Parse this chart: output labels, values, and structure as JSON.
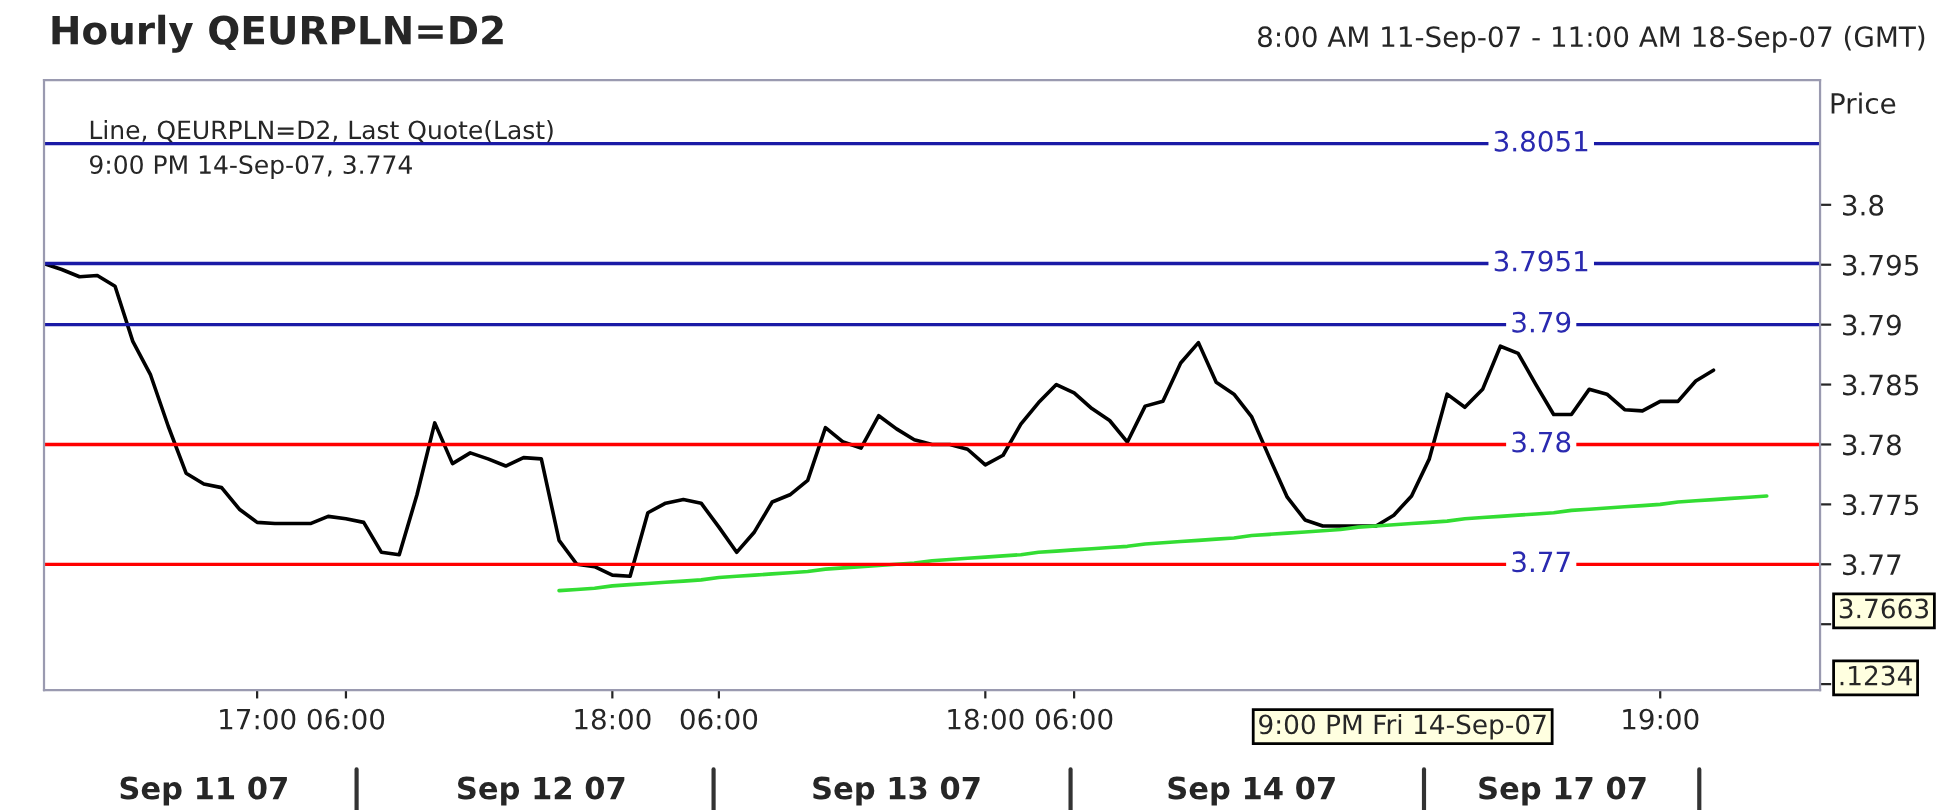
{
  "chart_data": {
    "type": "line",
    "title": "Hourly QEURPLN=D2",
    "subtitle": "8:00 AM 11-Sep-07 - 11:00 AM 18-Sep-07 (GMT)",
    "ylabel": "Price",
    "annotations": [
      "Line, QEURPLN=D2, Last Quote(Last)",
      "9:00 PM 14-Sep-07, 3.774",
      "9:00 PM Fri 14-Sep-07",
      "3.7663",
      ".1234",
      "Sep 11 07",
      "Sep 12 07",
      "Sep 13 07",
      "Sep 14 07",
      "Sep 17 07"
    ],
    "categories": [
      null,
      null,
      null,
      null,
      null,
      null,
      null,
      null,
      null,
      null,
      null,
      null,
      "17:00",
      null,
      null,
      null,
      null,
      "06:00",
      null,
      null,
      null,
      null,
      null,
      null,
      null,
      null,
      null,
      null,
      null,
      null,
      null,
      null,
      "18:00",
      null,
      null,
      null,
      null,
      null,
      "06:00",
      null,
      null,
      null,
      null,
      null,
      null,
      null,
      null,
      null,
      null,
      null,
      null,
      null,
      null,
      "18:00",
      null,
      null,
      null,
      null,
      "06:00",
      null,
      null,
      null,
      null,
      null,
      null,
      null,
      null,
      null,
      null,
      null,
      null,
      null,
      null,
      null,
      null,
      null,
      null,
      null,
      null,
      null,
      null,
      null,
      null,
      null,
      null,
      null,
      null,
      null,
      null,
      null,
      null,
      "19:00",
      null,
      null,
      null,
      null,
      null,
      null,
      null,
      null,
      null
    ],
    "ylim": [
      3.7595,
      3.8104
    ],
    "yticks": [
      {
        "value": 3.76,
        "label": null
      },
      {
        "value": 3.765,
        "label": null
      },
      3.77,
      3.775,
      3.78,
      3.785,
      3.79,
      3.795,
      3.8
    ],
    "grid": false,
    "legend": false,
    "marker": "none",
    "line_style": "solid",
    "ref_lines": [
      {
        "axis": "y",
        "value": 3.8051,
        "label": "3.8051",
        "color": "#1a1aa6"
      },
      {
        "axis": "y",
        "value": 3.7951,
        "label": "3.7951",
        "color": "#1a1aa6"
      },
      {
        "axis": "y",
        "value": 3.79,
        "label": "3.79",
        "color": "#1a1aa6"
      },
      {
        "axis": "y",
        "value": 3.78,
        "label": "3.78",
        "color": "#ff0000"
      },
      {
        "axis": "y",
        "value": 3.77,
        "label": "3.77",
        "color": "#ff0000"
      }
    ],
    "series": [
      {
        "color": "#000000",
        "values": [
          3.7951,
          3.7946,
          3.794,
          3.7941,
          3.7932,
          3.7886,
          3.7858,
          3.7815,
          3.7776,
          3.7767,
          3.7764,
          3.7746,
          3.7735,
          3.7734,
          3.7734,
          3.7734,
          3.774,
          3.7738,
          3.7735,
          3.771,
          3.7708,
          3.7758,
          3.7818,
          3.7784,
          3.7793,
          3.7788,
          3.7782,
          3.7789,
          3.7788,
          3.772,
          3.77,
          3.7698,
          3.7691,
          3.769,
          3.7743,
          3.7751,
          3.7754,
          3.7751,
          3.7731,
          3.771,
          3.7727,
          3.7752,
          3.7758,
          3.777,
          3.7814,
          3.7802,
          3.7797,
          3.7824,
          3.7813,
          3.7804,
          3.78,
          3.78,
          3.7796,
          3.7783,
          3.7791,
          3.7817,
          3.7835,
          3.785,
          3.7843,
          3.783,
          3.782,
          3.7802,
          3.7832,
          3.7836,
          3.7868,
          3.7885,
          3.7852,
          3.7842,
          3.7823,
          3.7789,
          3.7756,
          3.7737,
          3.7732,
          3.7732,
          3.7732,
          3.7732,
          3.7741,
          3.7757,
          3.7788,
          3.7842,
          3.7831,
          3.7846,
          3.7882,
          3.7876,
          3.785,
          3.7825,
          3.7825,
          3.7846,
          3.7842,
          3.7829,
          3.7828,
          3.7836,
          3.7836,
          3.7853,
          3.7862,
          null,
          null,
          null,
          null,
          null,
          null
        ]
      },
      {
        "type": "line",
        "color": "#33dd33",
        "values": [
          null,
          null,
          null,
          null,
          null,
          null,
          null,
          null,
          null,
          null,
          null,
          null,
          null,
          null,
          null,
          null,
          null,
          null,
          null,
          null,
          null,
          null,
          null,
          null,
          null,
          null,
          null,
          null,
          null,
          3.7678,
          3.7679,
          3.768,
          3.7682,
          3.7683,
          3.7684,
          3.7685,
          3.7686,
          3.7687,
          3.7689,
          3.769,
          3.7691,
          3.7692,
          3.7693,
          3.7694,
          3.7696,
          3.7697,
          3.7698,
          3.7699,
          3.77,
          3.7701,
          3.7703,
          3.7704,
          3.7705,
          3.7706,
          3.7707,
          3.7708,
          3.771,
          3.7711,
          3.7712,
          3.7713,
          3.7714,
          3.7715,
          3.7717,
          3.7718,
          3.7719,
          3.772,
          3.7721,
          3.7722,
          3.7724,
          3.7725,
          3.7726,
          3.7727,
          3.7728,
          3.7729,
          3.7731,
          3.7732,
          3.7733,
          3.7734,
          3.7735,
          3.7736,
          3.7738,
          3.7739,
          3.774,
          3.7741,
          3.7742,
          3.7743,
          3.7745,
          3.7746,
          3.7747,
          3.7748,
          3.7749,
          3.775,
          3.7752,
          3.7753,
          3.7754,
          3.7755,
          3.7756,
          3.7757,
          null,
          null,
          null
        ]
      }
    ]
  }
}
